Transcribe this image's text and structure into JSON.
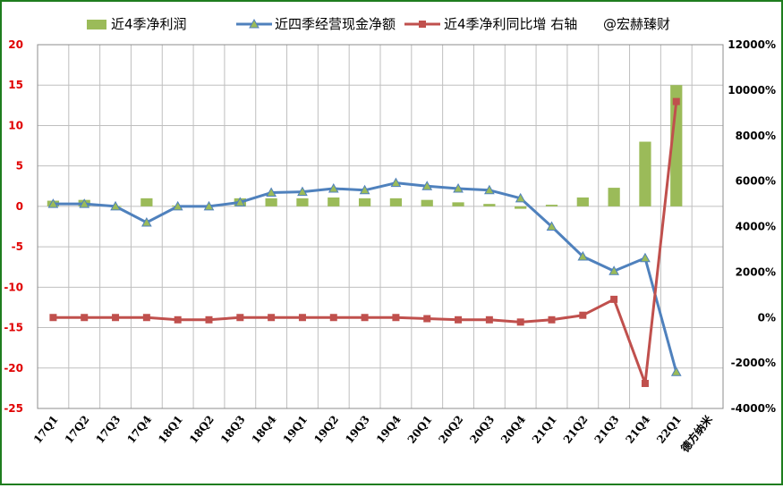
{
  "chart_data": {
    "type": "bar+line",
    "categories": [
      "17Q1",
      "17Q2",
      "17Q3",
      "17Q4",
      "18Q1",
      "18Q2",
      "18Q3",
      "18Q4",
      "19Q1",
      "19Q2",
      "19Q3",
      "19Q4",
      "20Q1",
      "20Q2",
      "20Q3",
      "20Q4",
      "21Q1",
      "21Q2",
      "21Q3",
      "21Q4",
      "22Q1"
    ],
    "extra_x_label": "德方纳米",
    "watermark": "@宏赫臻财",
    "left_axis": {
      "ylim": [
        -25,
        20
      ],
      "ticks": [
        "20",
        "15",
        "10",
        "5",
        "0",
        "-5",
        "-10",
        "-15",
        "-20",
        "-25"
      ],
      "tick_values": [
        20,
        15,
        10,
        5,
        0,
        -5,
        -10,
        -15,
        -20,
        -25
      ]
    },
    "right_axis": {
      "ylim": [
        -4000,
        12000
      ],
      "ticks": [
        "12000%",
        "10000%",
        "8000%",
        "6000%",
        "4000%",
        "2000%",
        "0%",
        "-2000%",
        "-4000%"
      ],
      "tick_values": [
        12000,
        10000,
        8000,
        6000,
        4000,
        2000,
        0,
        -2000,
        -4000
      ]
    },
    "series": [
      {
        "name": "近4季净利润",
        "kind": "bar",
        "axis": "left",
        "color": "#9bbb59",
        "values": [
          0.7,
          0.8,
          0.05,
          1.0,
          0.1,
          0.05,
          1.0,
          1.0,
          1.0,
          1.1,
          1.0,
          1.0,
          0.8,
          0.5,
          0.3,
          -0.3,
          0.2,
          1.1,
          2.3,
          8.0,
          15.0
        ]
      },
      {
        "name": "近四季经营现金净额",
        "kind": "line",
        "axis": "left",
        "color": "#4f81bd",
        "marker": "triangle",
        "values": [
          0.3,
          0.3,
          0.0,
          -2.0,
          0.0,
          0.0,
          0.5,
          1.7,
          1.8,
          2.2,
          2.0,
          2.9,
          2.5,
          2.2,
          2.0,
          1.0,
          -2.5,
          -6.2,
          -8.0,
          -6.4,
          -20.5
        ]
      },
      {
        "name": "近4季净利同比增 右轴",
        "kind": "line",
        "axis": "right",
        "color": "#c0504d",
        "marker": "square",
        "values": [
          0,
          0,
          0,
          0,
          -100,
          -100,
          0,
          0,
          0,
          0,
          0,
          0,
          -50,
          -100,
          -100,
          -200,
          -100,
          100,
          800,
          -2900,
          9500
        ]
      }
    ],
    "grid": true,
    "legend_position": "top"
  }
}
